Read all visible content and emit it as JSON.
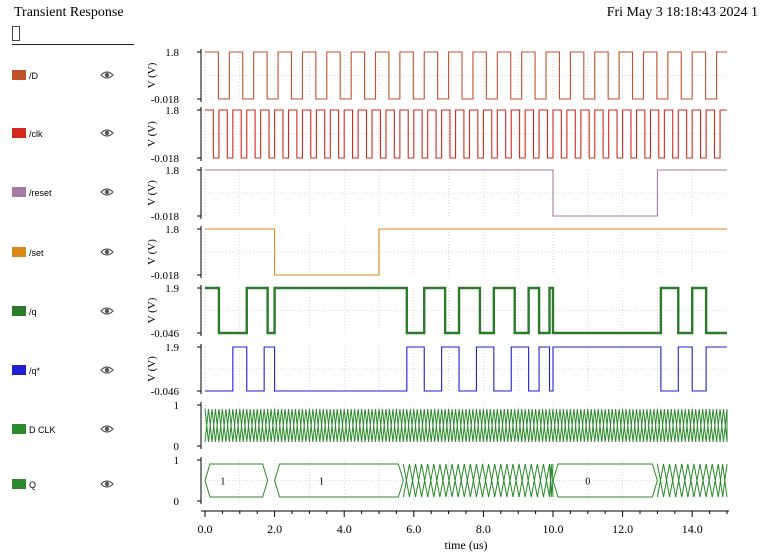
{
  "header": {
    "title": "Transient Response",
    "datestamp": "Fri May 3 18:18:43 2024  1"
  },
  "legend": [
    {
      "name": "/D",
      "color": "#c0522b"
    },
    {
      "name": "/clk",
      "color": "#d42a1e"
    },
    {
      "name": "/reset",
      "color": "#a77aa6"
    },
    {
      "name": "/set",
      "color": "#d9881a"
    },
    {
      "name": "/q",
      "color": "#2c7a2c"
    },
    {
      "name": "/q*",
      "color": "#1f1fd6"
    },
    {
      "name": "D CLK",
      "color": "#2b8a2b"
    },
    {
      "name": "Q",
      "color": "#2b8a2b"
    }
  ],
  "chart_data": {
    "type": "line",
    "xlabel": "time (us)",
    "xlim": [
      0,
      15
    ],
    "x_ticks": [
      "0.0",
      "2.0",
      "4.0",
      "6.0",
      "8.0",
      "10.0",
      "12.0",
      "14.0"
    ],
    "panels": [
      {
        "name": "/D",
        "ylabel": "V (V)",
        "y_top": "1.8",
        "y_bottom": "-0.018",
        "color": "#c0522b",
        "period_us": 0.7,
        "duty": 0.55
      },
      {
        "name": "/clk",
        "ylabel": "V (V)",
        "y_top": "1.8",
        "y_bottom": "-0.018",
        "color": "#d42a1e",
        "period_us": 0.4,
        "duty": 0.6
      },
      {
        "name": "/reset",
        "ylabel": "V (V)",
        "y_top": "1.8",
        "y_bottom": "-0.018",
        "color": "#a77aa6",
        "steps": [
          [
            0,
            1
          ],
          [
            10.0,
            0
          ],
          [
            13.0,
            1
          ]
        ]
      },
      {
        "name": "/set",
        "ylabel": "V (V)",
        "y_top": "1.8",
        "y_bottom": "-0.018",
        "color": "#d9881a",
        "steps": [
          [
            0,
            1
          ],
          [
            2.0,
            0
          ],
          [
            5.0,
            1
          ]
        ]
      },
      {
        "name": "/q",
        "ylabel": "V (V)",
        "y_top": "1.9",
        "y_bottom": "-0.046",
        "color": "#2c7a2c",
        "steps": [
          [
            0,
            1
          ],
          [
            0.4,
            0
          ],
          [
            1.2,
            1
          ],
          [
            1.8,
            0
          ],
          [
            2.0,
            1
          ],
          [
            5.8,
            0
          ],
          [
            6.3,
            1
          ],
          [
            6.9,
            0
          ],
          [
            7.3,
            1
          ],
          [
            7.9,
            0
          ],
          [
            8.3,
            1
          ],
          [
            8.9,
            0
          ],
          [
            9.3,
            1
          ],
          [
            9.6,
            0
          ],
          [
            9.9,
            1
          ],
          [
            10.0,
            0
          ],
          [
            13.1,
            1
          ],
          [
            13.6,
            0
          ],
          [
            14.0,
            1
          ],
          [
            14.4,
            0
          ]
        ]
      },
      {
        "name": "/q*",
        "ylabel": "V (V)",
        "y_top": "1.9",
        "y_bottom": "-0.046",
        "color": "#1f1fd6",
        "steps": [
          [
            0,
            0
          ],
          [
            0.8,
            1
          ],
          [
            1.2,
            0
          ],
          [
            1.7,
            1
          ],
          [
            2.0,
            0
          ],
          [
            5.8,
            1
          ],
          [
            6.3,
            0
          ],
          [
            6.8,
            1
          ],
          [
            7.3,
            0
          ],
          [
            7.8,
            1
          ],
          [
            8.3,
            0
          ],
          [
            8.8,
            1
          ],
          [
            9.3,
            0
          ],
          [
            9.6,
            1
          ],
          [
            9.9,
            0
          ],
          [
            10.0,
            1
          ],
          [
            13.1,
            0
          ],
          [
            13.6,
            1
          ],
          [
            14.0,
            0
          ],
          [
            14.4,
            1
          ]
        ]
      },
      {
        "name": "D CLK",
        "y_top": "1",
        "y_bottom": "0",
        "color": "#2b8a2b",
        "bus": true,
        "period_us": 0.2
      },
      {
        "name": "Q",
        "y_top": "1",
        "y_bottom": "0",
        "color": "#2b8a2b",
        "bus": true,
        "segments": [
          [
            0,
            1.8,
            "1"
          ],
          [
            2.0,
            5.7,
            "1"
          ],
          [
            5.7,
            10.0,
            ""
          ],
          [
            10.0,
            13.0,
            "0"
          ],
          [
            13.0,
            15.0,
            ""
          ]
        ]
      }
    ]
  }
}
